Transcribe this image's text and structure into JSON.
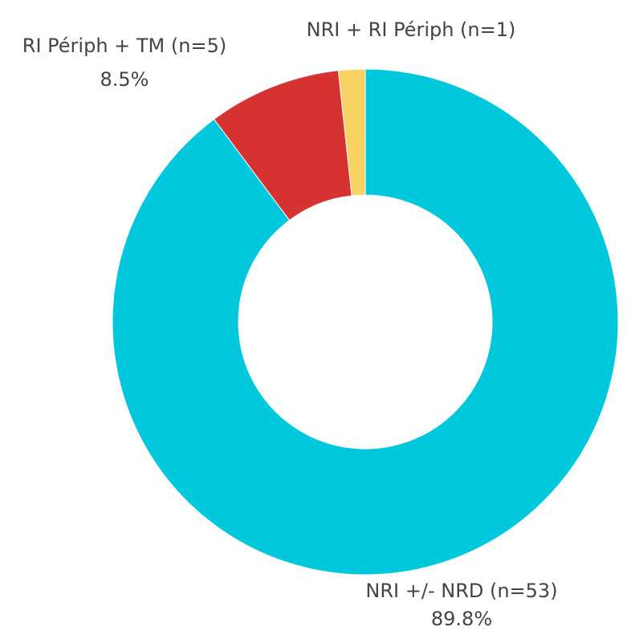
{
  "chart_data": {
    "type": "donut",
    "categories": [
      "NRI +/- NRD (n=53)",
      "RI Périph + TM (n=5)",
      "NRI + RI Périph (n=1)"
    ],
    "values": [
      89.8,
      8.5,
      1.7
    ],
    "value_labels": [
      "89.8%",
      "8.5%",
      null
    ],
    "colors": [
      "#00c8dc",
      "#d63232",
      "#fad264"
    ]
  }
}
